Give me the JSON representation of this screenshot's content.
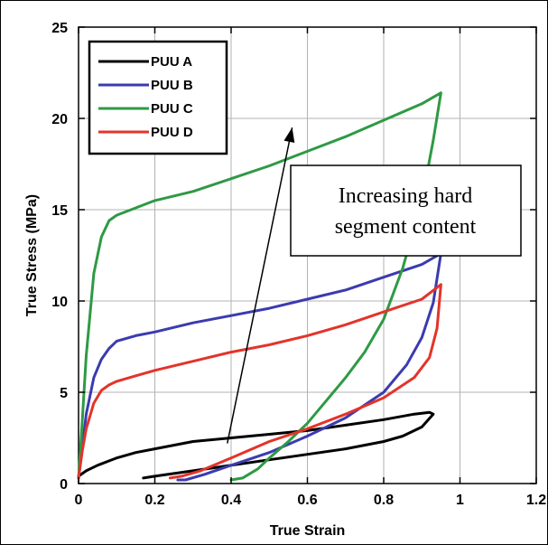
{
  "chart_data": {
    "type": "line",
    "xlabel": "True Strain",
    "ylabel": "True Stress (MPa)",
    "xlim": [
      0,
      1.2
    ],
    "ylim": [
      0,
      25
    ],
    "xticks": [
      0,
      0.2,
      0.4,
      0.6,
      0.8,
      1,
      1.2
    ],
    "xtick_labels": [
      "0",
      "0.2",
      "0.4",
      "0.6",
      "0.8",
      "1",
      "1.2"
    ],
    "yticks": [
      0,
      5,
      10,
      15,
      20,
      25
    ],
    "ytick_labels": [
      "0",
      "5",
      "10",
      "15",
      "20",
      "25"
    ],
    "grid": true,
    "legend_position": "top-left",
    "annotation": {
      "lines": [
        "Increasing hard",
        "segment content"
      ],
      "arrow_from": [
        0.39,
        2.2
      ],
      "arrow_to": [
        0.56,
        19.5
      ]
    },
    "series": [
      {
        "name": "PUU A",
        "color": "#000000",
        "x": [
          0,
          0.02,
          0.05,
          0.1,
          0.15,
          0.2,
          0.3,
          0.4,
          0.5,
          0.6,
          0.7,
          0.8,
          0.88,
          0.92,
          0.93,
          0.9,
          0.85,
          0.8,
          0.7,
          0.6,
          0.5,
          0.4,
          0.3,
          0.2,
          0.17
        ],
        "y": [
          0.4,
          0.7,
          1.0,
          1.4,
          1.7,
          1.9,
          2.3,
          2.5,
          2.7,
          2.9,
          3.2,
          3.5,
          3.8,
          3.9,
          3.8,
          3.1,
          2.6,
          2.3,
          1.9,
          1.6,
          1.3,
          1.0,
          0.7,
          0.4,
          0.3
        ]
      },
      {
        "name": "PUU B",
        "color": "#3b3bb0",
        "x": [
          0,
          0.01,
          0.02,
          0.04,
          0.06,
          0.08,
          0.1,
          0.15,
          0.2,
          0.3,
          0.4,
          0.5,
          0.6,
          0.7,
          0.8,
          0.9,
          0.95,
          0.93,
          0.9,
          0.86,
          0.8,
          0.7,
          0.6,
          0.5,
          0.4,
          0.33,
          0.28,
          0.26
        ],
        "y": [
          0.3,
          2.0,
          3.8,
          5.8,
          6.8,
          7.4,
          7.8,
          8.1,
          8.3,
          8.8,
          9.2,
          9.6,
          10.1,
          10.6,
          11.3,
          12.0,
          12.6,
          9.9,
          8.0,
          6.5,
          5.0,
          3.6,
          2.6,
          1.7,
          1.0,
          0.5,
          0.2,
          0.2
        ]
      },
      {
        "name": "PUU C",
        "color": "#2e9a44",
        "x": [
          0,
          0.01,
          0.02,
          0.04,
          0.06,
          0.08,
          0.1,
          0.15,
          0.2,
          0.3,
          0.4,
          0.5,
          0.6,
          0.7,
          0.8,
          0.9,
          0.95,
          0.93,
          0.9,
          0.85,
          0.8,
          0.75,
          0.7,
          0.6,
          0.55,
          0.5,
          0.47,
          0.43,
          0.4
        ],
        "y": [
          0.3,
          3.5,
          7.0,
          11.5,
          13.5,
          14.4,
          14.7,
          15.1,
          15.5,
          16.0,
          16.7,
          17.4,
          18.2,
          19.0,
          19.9,
          20.8,
          21.4,
          18.8,
          15.5,
          11.8,
          9.0,
          7.2,
          5.8,
          3.3,
          2.3,
          1.4,
          0.8,
          0.3,
          0.2
        ]
      },
      {
        "name": "PUU D",
        "color": "#e3342a",
        "x": [
          0,
          0.01,
          0.02,
          0.04,
          0.06,
          0.08,
          0.1,
          0.15,
          0.2,
          0.3,
          0.4,
          0.5,
          0.6,
          0.7,
          0.8,
          0.9,
          0.95,
          0.94,
          0.92,
          0.88,
          0.8,
          0.7,
          0.6,
          0.5,
          0.4,
          0.32,
          0.27,
          0.24
        ],
        "y": [
          0.3,
          1.8,
          3.0,
          4.4,
          5.1,
          5.4,
          5.6,
          5.9,
          6.2,
          6.7,
          7.2,
          7.6,
          8.1,
          8.7,
          9.4,
          10.1,
          10.9,
          8.5,
          6.9,
          5.8,
          4.7,
          3.8,
          3.0,
          2.3,
          1.4,
          0.7,
          0.4,
          0.3
        ]
      }
    ]
  }
}
